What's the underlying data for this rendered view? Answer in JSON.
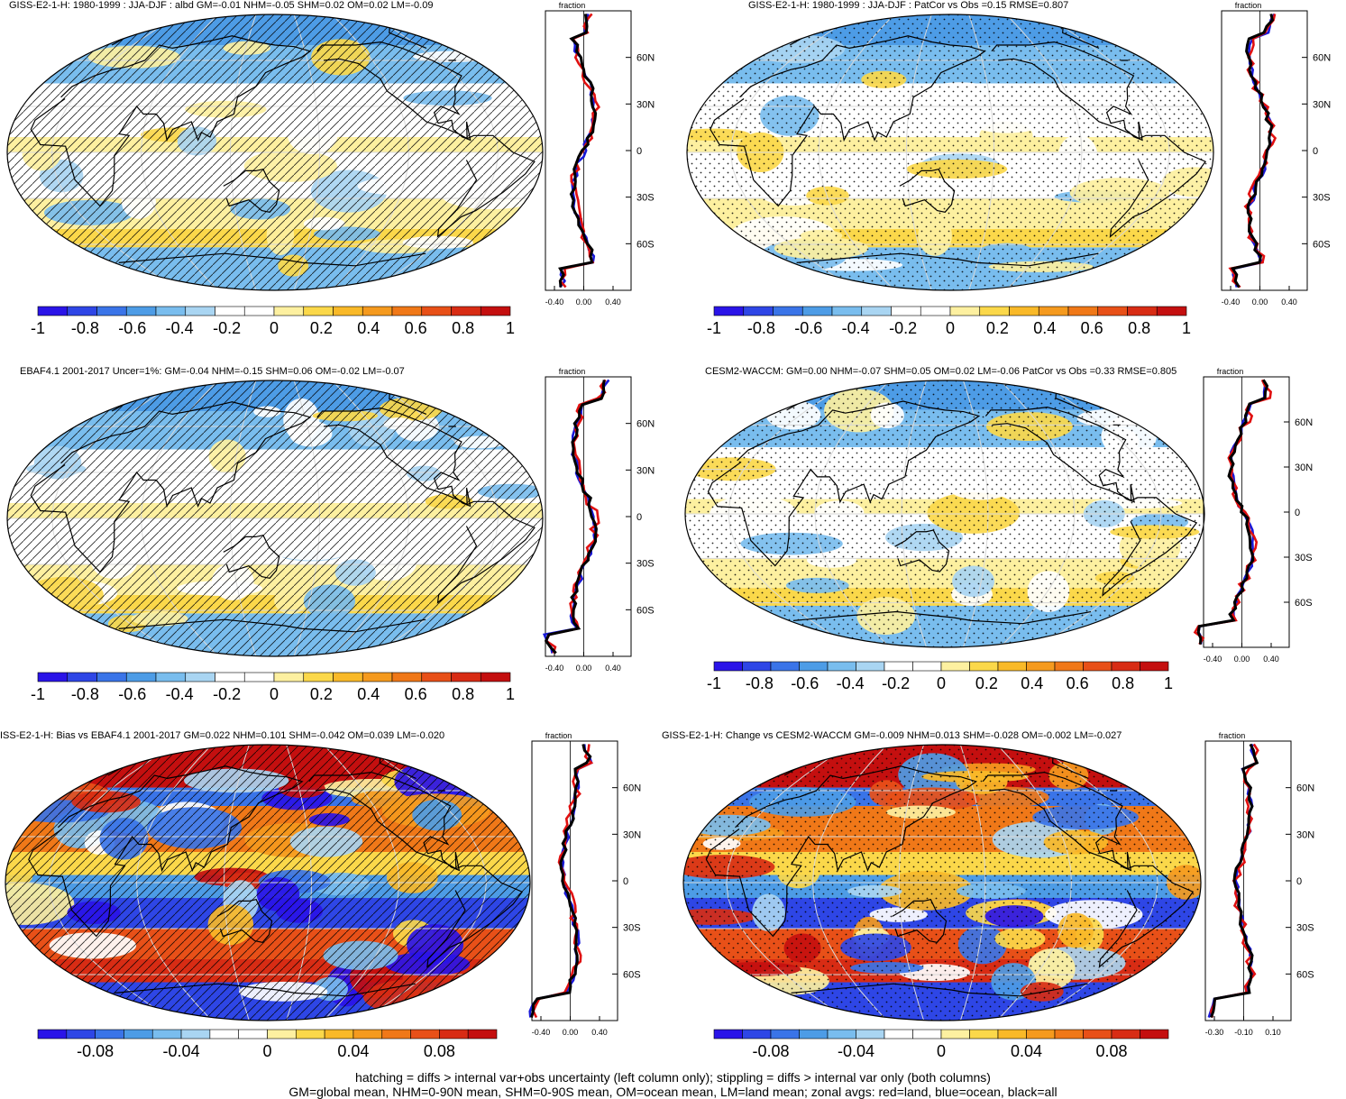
{
  "panels": [
    {
      "title": "GISS-E2-1-H: 1980-1999 : JJA-DJF : albd GM=-0.01 NHM=-0.05 SHM=0.02 OM=0.02 LM=-0.09",
      "overlay": "hatch",
      "fill": "small",
      "zonal": {
        "axis_title": "fraction",
        "xticks": [
          "-0.40",
          "0.00",
          "0.40"
        ],
        "yticks": [
          "60N",
          "30N",
          "0",
          "30S",
          "60S"
        ]
      },
      "colorbar": {
        "labels": [
          "-1",
          "-0.8",
          "-0.6",
          "-0.4",
          "-0.2",
          "0",
          "0.2",
          "0.4",
          "0.6",
          "0.8",
          "1"
        ]
      }
    },
    {
      "title": "GISS-E2-1-H: 1980-1999 : JJA-DJF : PatCor vs Obs =0.15 RMSE=0.807",
      "overlay": "stipple",
      "fill": "small",
      "zonal": {
        "axis_title": "fraction",
        "xticks": [
          "-0.40",
          "0.00",
          "0.40"
        ],
        "yticks": [
          "60N",
          "30N",
          "0",
          "30S",
          "60S"
        ]
      },
      "colorbar": {
        "labels": [
          "-1",
          "-0.8",
          "-0.6",
          "-0.4",
          "-0.2",
          "0",
          "0.2",
          "0.4",
          "0.6",
          "0.8",
          "1"
        ]
      }
    },
    {
      "title": "EBAF4.1 2001-2017 Uncer=1%: GM=-0.04 NHM=-0.15 SHM=0.06 OM=-0.02 LM=-0.07",
      "overlay": "hatch",
      "fill": "small",
      "zonal": {
        "axis_title": "fraction",
        "xticks": [
          "-0.40",
          "0.00",
          "0.40"
        ],
        "yticks": [
          "60N",
          "30N",
          "0",
          "30S",
          "60S"
        ]
      },
      "colorbar": {
        "labels": [
          "-1",
          "-0.8",
          "-0.6",
          "-0.4",
          "-0.2",
          "0",
          "0.2",
          "0.4",
          "0.6",
          "0.8",
          "1"
        ]
      }
    },
    {
      "title": "CESM2-WACCM: GM=0.00 NHM=-0.07 SHM=0.05 OM=0.02 LM=-0.06 PatCor vs Obs =0.33 RMSE=0.805",
      "overlay": "stipple",
      "fill": "small",
      "zonal": {
        "axis_title": "fraction",
        "xticks": [
          "-0.40",
          "0.00",
          "0.40"
        ],
        "yticks": [
          "60N",
          "30N",
          "0",
          "30S",
          "60S"
        ]
      },
      "colorbar": {
        "labels": [
          "-1",
          "-0.8",
          "-0.6",
          "-0.4",
          "-0.2",
          "0",
          "0.2",
          "0.4",
          "0.6",
          "0.8",
          "1"
        ]
      }
    },
    {
      "title": "ISS-E2-1-H: Bias vs EBAF4.1 2001-2017 GM=0.022 NHM=0.101 SHM=-0.042 OM=0.039 LM=-0.020",
      "overlay": "hatch",
      "fill": "strong",
      "zonal": {
        "axis_title": "fraction",
        "xticks": [
          "-0.40",
          "0.00",
          "0.40"
        ],
        "yticks": [
          "60N",
          "30N",
          "0",
          "30S",
          "60S"
        ]
      },
      "colorbar": {
        "labels": [
          "-0.08",
          "-0.04",
          "0",
          "0.04",
          "0.08"
        ]
      }
    },
    {
      "title": "GISS-E2-1-H: Change vs CESM2-WACCM GM=-0.009 NHM=0.013 SHM=-0.028 OM=-0.002 LM=-0.027",
      "overlay": "stipple",
      "fill": "strong",
      "zonal": {
        "axis_title": "fraction",
        "xticks": [
          "-0.30",
          "-0.10",
          "0.10"
        ],
        "yticks": [
          "60N",
          "30N",
          "0",
          "30S",
          "60S"
        ]
      },
      "colorbar": {
        "labels": [
          "-0.08",
          "-0.04",
          "0",
          "0.04",
          "0.08"
        ]
      }
    }
  ],
  "footer": {
    "line1": "hatching = diffs > internal var+obs uncertainty (left column only); stippling = diffs > internal var only (both columns)",
    "line2": "GM=global mean, NHM=0-90N mean, SHM=0-90S mean, OM=ocean mean, LM=land mean; zonal avgs: red=land, blue=ocean, black=all"
  },
  "colors": {
    "scale": [
      "#2a14e8",
      "#2e46e6",
      "#3a74e8",
      "#4d9ce6",
      "#79bdee",
      "#a9d5f2",
      "#ffffff",
      "#ffffff",
      "#fdf0a0",
      "#fbd84a",
      "#f9b928",
      "#f59a1e",
      "#f07818",
      "#e85018",
      "#d82c14",
      "#c40f0f"
    ],
    "land": "#e01010",
    "ocean": "#1818d8",
    "all": "#000000"
  }
}
